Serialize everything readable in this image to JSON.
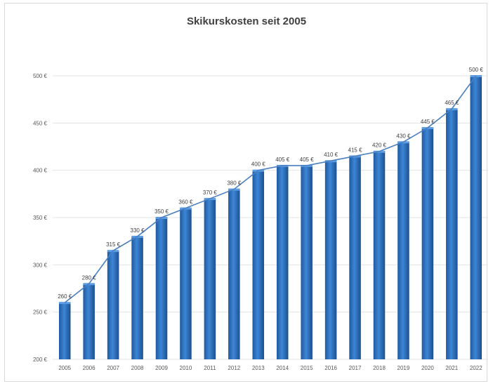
{
  "chart_data": {
    "type": "bar",
    "title": "Skikurskosten seit 2005",
    "xlabel": "",
    "ylabel": "",
    "categories": [
      "2005",
      "2006",
      "2007",
      "2008",
      "2009",
      "2010",
      "2011",
      "2012",
      "2013",
      "2014",
      "2015",
      "2016",
      "2017",
      "2018",
      "2019",
      "2020",
      "2021",
      "2022"
    ],
    "values": [
      260,
      280,
      315,
      330,
      350,
      360,
      370,
      380,
      400,
      405,
      405,
      410,
      415,
      420,
      430,
      445,
      465,
      500
    ],
    "data_labels": [
      "260 €",
      "280 €",
      "315 €",
      "330 €",
      "350 €",
      "360 €",
      "370 €",
      "380 €",
      "400 €",
      "405 €",
      "405 €",
      "410 €",
      "415 €",
      "420 €",
      "430 €",
      "445 €",
      "465 €",
      "500 €"
    ],
    "ylim": [
      200,
      500
    ],
    "y_ticks": [
      200,
      250,
      300,
      350,
      400,
      450,
      500
    ],
    "y_tick_labels": [
      "200 €",
      "250 €",
      "300 €",
      "350 €",
      "400 €",
      "450 €",
      "500 €"
    ],
    "overlay_line": true,
    "grid": true,
    "legend": "none",
    "colors": {
      "bar": "#2e75c8",
      "bar_dark": "#1f5aa0",
      "line": "#4a7fc1",
      "grid": "#e3e3e3"
    }
  }
}
